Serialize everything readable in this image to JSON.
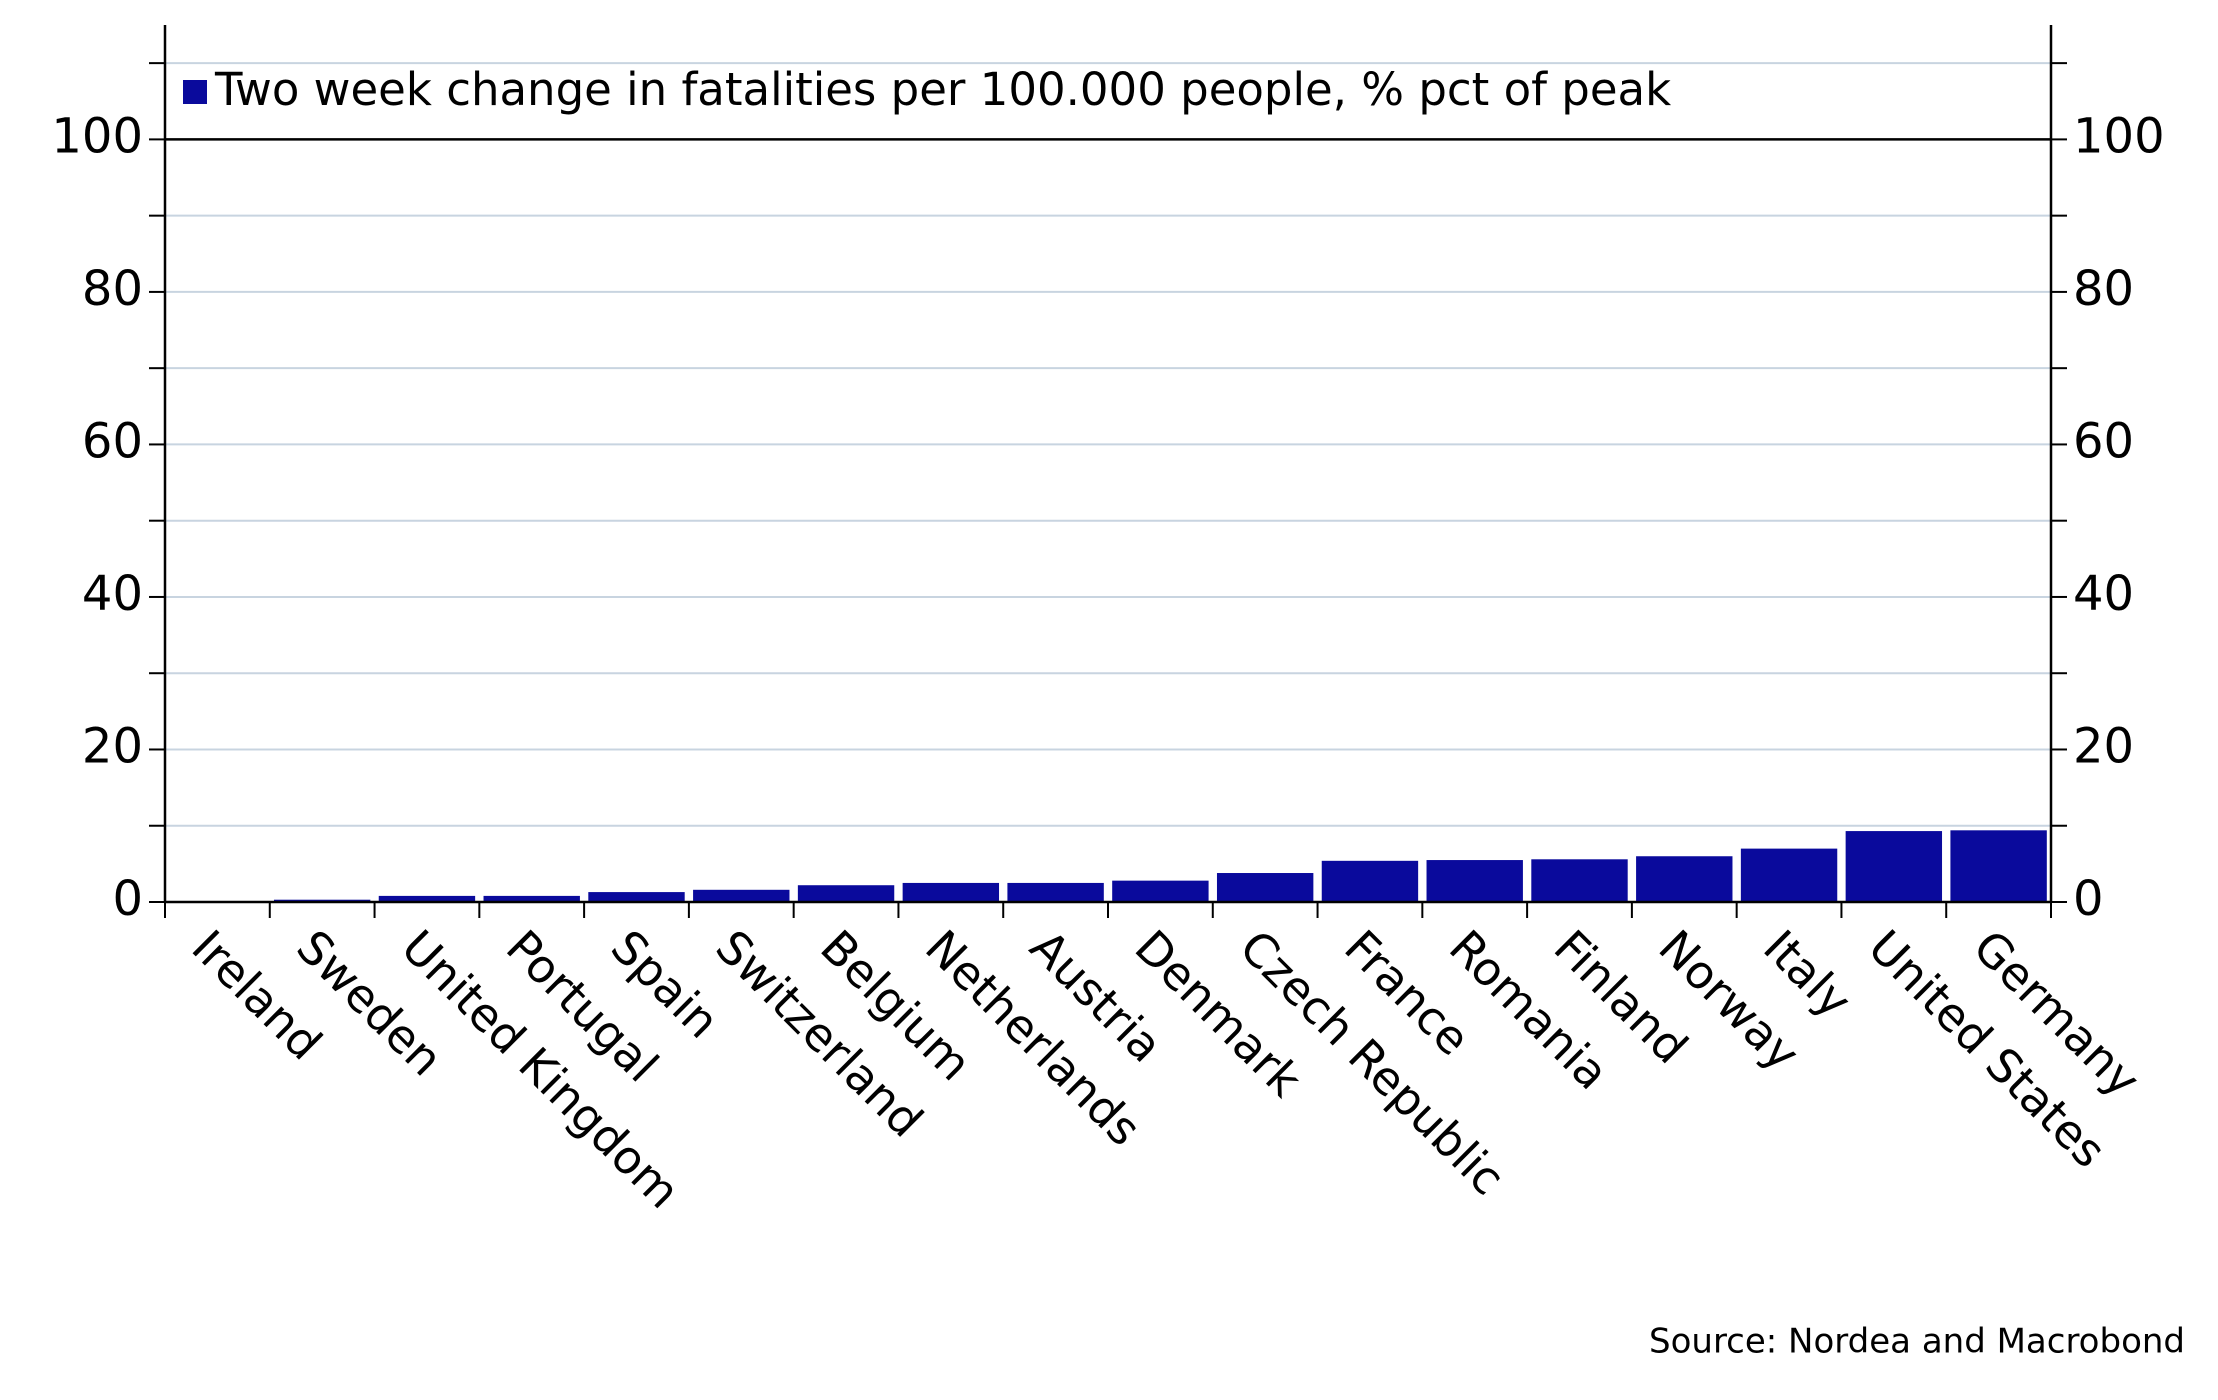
{
  "chart_data": {
    "type": "bar",
    "legend_label": "Two week change in fatalities per 100.000 people, % pct of peak",
    "source": "Source: Nordea and Macrobond",
    "categories": [
      "Ireland",
      "Sweden",
      "United Kingdom",
      "Portugal",
      "Spain",
      "Switzerland",
      "Belgium",
      "Netherlands",
      "Austria",
      "Denmark",
      "Czech Republic",
      "France",
      "Romania",
      "Finland",
      "Norway",
      "Italy",
      "United States",
      "Germany"
    ],
    "values": [
      0,
      0.3,
      0.8,
      0.8,
      1.3,
      1.6,
      2.2,
      2.5,
      2.5,
      2.8,
      3.8,
      5.4,
      5.5,
      5.6,
      6.0,
      7.0,
      9.3,
      9.4
    ],
    "color": "#0a0a9c",
    "ylim": [
      0,
      115
    ],
    "yticks": [
      0,
      20,
      40,
      60,
      80,
      100
    ],
    "minor_yticks": [
      10,
      30,
      50,
      70,
      90,
      110
    ],
    "grid": true,
    "grid_color": "#c8d4e0"
  }
}
